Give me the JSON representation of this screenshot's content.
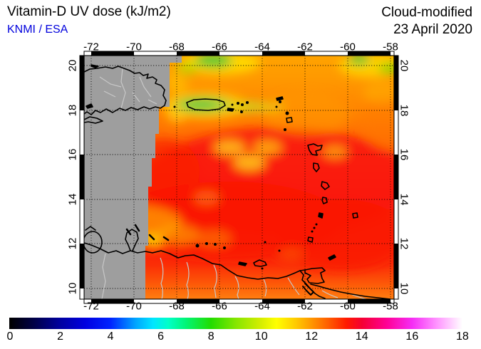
{
  "header": {
    "title": "Vitamin-D UV dose (kJ/m2)",
    "source": "KNMI / ESA",
    "mode": "Cloud-modified",
    "date": "23 April 2020"
  },
  "palette": {
    "source_text_color": "#0000dd",
    "no_data_grey": "#9e9e9e",
    "coastline_color": "#000000",
    "border_river_color": "#c8c8c8",
    "background": "#ffffff"
  },
  "map": {
    "lon_tick_labels": [
      "-72",
      "-70",
      "-68",
      "-66",
      "-64",
      "-62",
      "-60",
      "-58"
    ],
    "lat_tick_labels": [
      "20",
      "18",
      "16",
      "14",
      "12",
      "10"
    ],
    "gridlines": "dotted black at 2-degree intervals",
    "no_data_region": "west of about 68.5W rendered grey (no satellite data), stepped boundary",
    "features": [
      "Hispaniola",
      "Puerto Rico",
      "Virgin Islands",
      "Lesser Antilles arc",
      "Barbados",
      "Trinidad and Tobago",
      "Margarita",
      "Venezuela coast",
      "Lake Maracaibo",
      "Orinoco delta"
    ]
  },
  "colorbar": {
    "tick_labels": [
      "0",
      "2",
      "4",
      "6",
      "8",
      "10",
      "12",
      "14",
      "16",
      "18"
    ],
    "min": 0,
    "max": 18,
    "stops": [
      {
        "v": 0,
        "c": "#000000"
      },
      {
        "v": 1,
        "c": "#00004b"
      },
      {
        "v": 2,
        "c": "#0000a0"
      },
      {
        "v": 3,
        "c": "#0000e1"
      },
      {
        "v": 4,
        "c": "#0023ff"
      },
      {
        "v": 5,
        "c": "#00a5ff"
      },
      {
        "v": 5.7,
        "c": "#00e6ff"
      },
      {
        "v": 6.3,
        "c": "#00ffc8"
      },
      {
        "v": 7,
        "c": "#00f576"
      },
      {
        "v": 8,
        "c": "#23dc00"
      },
      {
        "v": 9,
        "c": "#87e600"
      },
      {
        "v": 10,
        "c": "#d7ee00"
      },
      {
        "v": 10.6,
        "c": "#ffff00"
      },
      {
        "v": 11.4,
        "c": "#ffc800"
      },
      {
        "v": 12,
        "c": "#ff9600"
      },
      {
        "v": 12.7,
        "c": "#ff5a00"
      },
      {
        "v": 13.4,
        "c": "#ff1900"
      },
      {
        "v": 14,
        "c": "#f50032"
      },
      {
        "v": 15,
        "c": "#ff0096"
      },
      {
        "v": 16,
        "c": "#f52df5"
      },
      {
        "v": 17,
        "c": "#ff96ff"
      },
      {
        "v": 18,
        "c": "#ffffff"
      }
    ]
  },
  "chart_data": {
    "type": "heatmap",
    "title": "Vitamin-D UV dose (kJ/m2)",
    "provider": "KNMI / ESA",
    "product": "Cloud-modified",
    "date": "23 April 2020",
    "units": "kJ/m2",
    "lon_ticks": [
      -72,
      -70,
      -68,
      -66,
      -64,
      -62,
      -60,
      -58
    ],
    "lat_ticks": [
      20,
      18,
      16,
      14,
      12,
      10
    ],
    "lon_range_shown": [
      -72.3,
      -57.8
    ],
    "lat_range_shown": [
      9.5,
      20.5
    ],
    "scale_range": [
      0,
      18
    ],
    "readings": [
      {
        "area": "open ocean 15-19N east of 68W",
        "value_kj_m2": 11.5
      },
      {
        "area": "central band 11-14.5N (peak dose)",
        "value_kj_m2": 13
      },
      {
        "area": "Puerto Rico, cloud-reduced patch",
        "value_kj_m2": 8.5
      },
      {
        "area": "north edge ~20N near 66W, cloud-reduced",
        "value_kj_m2": 8.5
      },
      {
        "area": "northeast corner ~59W 20N, cloud-reduced",
        "value_kj_m2": 9.5
      },
      {
        "area": "Venezuela coast ~10N 66-68W",
        "value_kj_m2": 10.5
      },
      {
        "area": "near Martinique/St. Lucia ~61W 13.5N",
        "value_kj_m2": 11
      },
      {
        "area": "west of stepped boundary (~68.5W)",
        "value_kj_m2": null
      }
    ]
  }
}
